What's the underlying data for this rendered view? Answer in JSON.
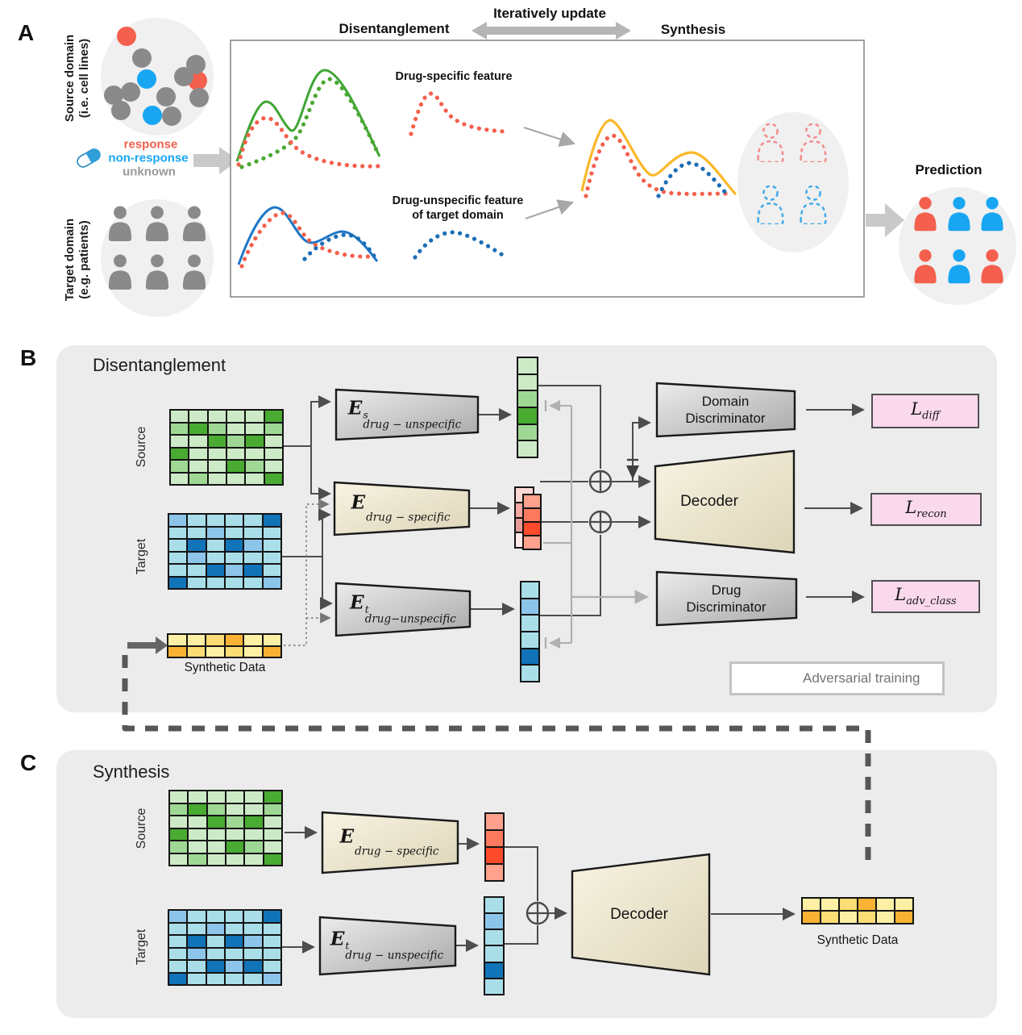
{
  "colors": {
    "red_person": "#f4604d",
    "blue_person": "#18a6f2",
    "gray_person": "#8a8a8a",
    "dashed_red": "#f28b8b",
    "dashed_blue": "#41aae8",
    "circle_bg": "#f0f0f0",
    "curve_green": "#3fa535",
    "curve_red": "#f2604d",
    "curve_blue": "#1d78c8",
    "curve_blue_dot": "#1b6db5",
    "curve_yellow": "#fbb829",
    "pill_blue": "#2f9fd8",
    "line_dark": "#4d4d4d",
    "line_light": "#b0b0b0",
    "loss_pink": "#fbd9ec"
  },
  "palettes": {
    "green": {
      "L": "#cdeac6",
      "M": "#9fd895",
      "D": "#49ab31"
    },
    "blue": {
      "L": "#a9dee9",
      "M": "#8cc5e9",
      "D": "#1173b8"
    },
    "yellow": {
      "L": "#fdf0a4",
      "M": "#fcdc74",
      "O": "#f9b233"
    },
    "red": {
      "A": "#ffa18d",
      "B": "#fe7a5f",
      "C": "#fd4b2c"
    },
    "red_back": {
      "P": "#fbd8d4",
      "Q": "#f3a9a1",
      "R": "#e79b94",
      "S": "#fde9e7"
    }
  },
  "panel_a": {
    "label": "A",
    "source_domain_line1": "Source domain",
    "source_domain_line2": "(i.e. cell lines)",
    "target_domain_line1": "Target domain",
    "target_domain_line2": "(e.g. patients)",
    "legend": {
      "response": "response",
      "non_response": "non-response",
      "unknown": "unknown"
    },
    "box": {
      "disentanglement": "Disentanglement",
      "iteratively_update": "Iteratively update",
      "synthesis": "Synthesis",
      "drug_specific_feature": "Drug-specific feature",
      "drug_unspecific_line1": "Drug-unspecific feature",
      "drug_unspecific_line2": "of target domain"
    },
    "prediction_label": "Prediction",
    "source_dots": [
      {
        "color": "red_person"
      },
      {
        "color": "gray_person"
      },
      {
        "color": "blue_person"
      },
      {
        "color": "red_person"
      },
      {
        "color": "gray_person"
      },
      {
        "color": "gray_person"
      },
      {
        "color": "gray_person"
      },
      {
        "color": "gray_person"
      },
      {
        "color": "gray_person"
      },
      {
        "color": "gray_person"
      },
      {
        "color": "gray_person"
      },
      {
        "color": "blue_person"
      },
      {
        "color": "gray_person"
      }
    ],
    "dashed_people": [
      [
        "dashed_red",
        "dashed_red"
      ],
      [
        "dashed_blue",
        "dashed_blue"
      ]
    ],
    "prediction_people": [
      [
        "red_person",
        "blue_person",
        "blue_person"
      ],
      [
        "red_person",
        "blue_person",
        "red_person"
      ]
    ]
  },
  "panel_b": {
    "label": "B",
    "title": "Disentanglement",
    "source_label": "Source",
    "target_label": "Target",
    "synthetic_label": "Synthetic Data",
    "encoders": [
      {
        "sym": "E",
        "sup": "s",
        "sub": "drug − unspecific"
      },
      {
        "sym": "E",
        "sup": "",
        "sub": "drug − specific"
      },
      {
        "sym": "E",
        "sup": "t",
        "sub": "drug−unspecific"
      }
    ],
    "components": {
      "domain_discriminator_line1": "Domain",
      "domain_discriminator_line2": "Discriminator",
      "decoder": "Decoder",
      "drug_discriminator_line1": "Drug",
      "drug_discriminator_line2": "Discriminator"
    },
    "losses": [
      {
        "sym": "L",
        "sub": "diff"
      },
      {
        "sym": "L",
        "sub": "recon"
      },
      {
        "sym": "L",
        "sub": "adv_class"
      }
    ],
    "legend_label": "Adversarial training",
    "matrices": {
      "source": {
        "palette": "green",
        "rows": [
          "LLLLLD",
          "MDMLLM",
          "LLDMDL",
          "DLLLLL",
          "MLLDML",
          "LMLLLD"
        ]
      },
      "target": {
        "palette": "blue",
        "rows": [
          "MLLLLD",
          "LLMLLL",
          "LDLDML",
          "LMLLLL",
          "LLDMDL",
          "DLLLLM"
        ]
      },
      "synthetic": {
        "palette": "yellow",
        "rows": [
          "LLMOLL",
          "OMLMLO"
        ]
      }
    },
    "vectors": {
      "green": {
        "palette": "green",
        "rows": [
          "L",
          "L",
          "M",
          "D",
          "M",
          "L"
        ]
      },
      "red_front": {
        "palette": "red",
        "rows": [
          "A",
          "B",
          "C",
          "A"
        ]
      },
      "red_back": {
        "palette": "red_back",
        "rows": [
          "P",
          "Q",
          "R",
          "S"
        ]
      },
      "blue": {
        "palette": "blue",
        "rows": [
          "L",
          "M",
          "L",
          "L",
          "D",
          "L"
        ]
      }
    }
  },
  "panel_c": {
    "label": "C",
    "title": "Synthesis",
    "source_label": "Source",
    "target_label": "Target",
    "synthetic_label": "Synthetic Data",
    "encoders": [
      {
        "sym": "E",
        "sup": "",
        "sub": "drug − specific"
      },
      {
        "sym": "E",
        "sup": "t",
        "sub": "drug − unspecific"
      }
    ],
    "decoder_label": "Decoder",
    "matrices": {
      "source": {
        "palette": "green",
        "rows": [
          "LLLLLD",
          "MDMLLM",
          "LLDMDL",
          "DLLLLL",
          "MLLDML",
          "LMLLLD"
        ]
      },
      "target": {
        "palette": "blue",
        "rows": [
          "MLLLLD",
          "LLMLLL",
          "LDLDML",
          "LMLLLL",
          "LLDMDL",
          "DLLLLM"
        ]
      },
      "synthetic": {
        "palette": "yellow",
        "rows": [
          "LLMOLL",
          "OMLMLO"
        ]
      }
    },
    "vectors": {
      "red": {
        "palette": "red",
        "rows": [
          "A",
          "B",
          "C",
          "A"
        ]
      },
      "blue": {
        "palette": "blue",
        "rows": [
          "L",
          "M",
          "L",
          "L",
          "D",
          "L"
        ]
      }
    }
  }
}
